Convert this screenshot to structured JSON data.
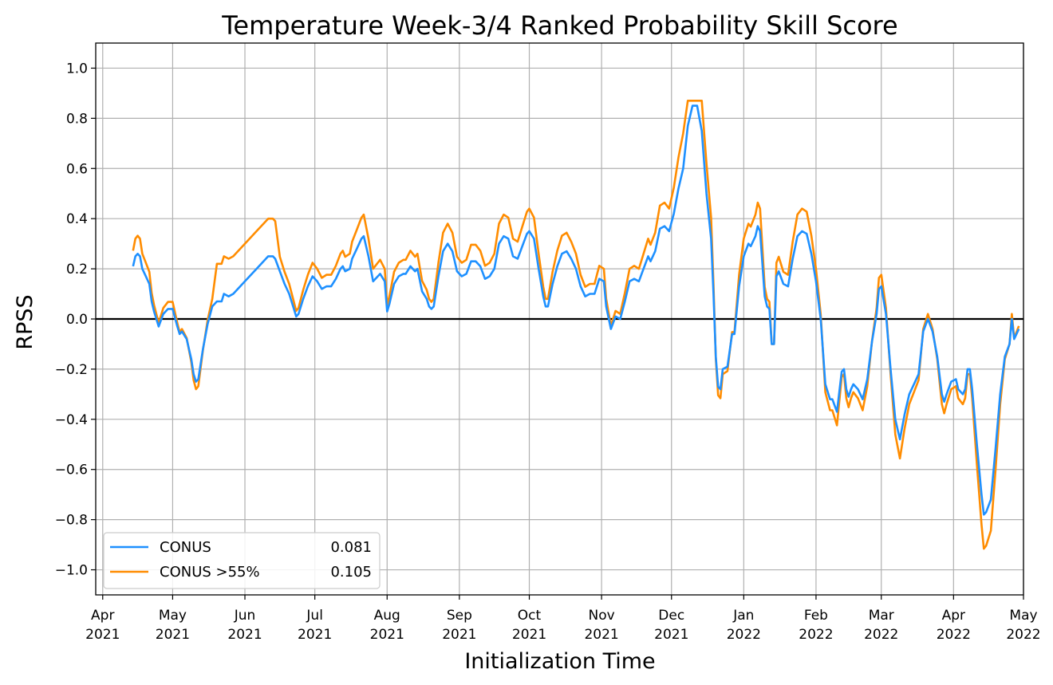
{
  "chart_data": {
    "type": "line",
    "title": "Temperature Week-3/4 Ranked Probability Skill Score",
    "xlabel": "Initialization Time",
    "ylabel": "RPSS",
    "ylim": [
      -1.1,
      1.1
    ],
    "xlim": [
      "2021-03-29",
      "2022-05-01"
    ],
    "grid": true,
    "legend_position": "lower-left",
    "zero_line": true,
    "y_ticks": [
      {
        "v": 1.0,
        "label": "1.0"
      },
      {
        "v": 0.8,
        "label": "0.8"
      },
      {
        "v": 0.6,
        "label": "0.6"
      },
      {
        "v": 0.4,
        "label": "0.4"
      },
      {
        "v": 0.2,
        "label": "0.2"
      },
      {
        "v": 0.0,
        "label": "0.0"
      },
      {
        "v": -0.2,
        "label": "−0.2"
      },
      {
        "v": -0.4,
        "label": "−0.4"
      },
      {
        "v": -0.6,
        "label": "−0.6"
      },
      {
        "v": -0.8,
        "label": "−0.8"
      },
      {
        "v": -1.0,
        "label": "−1.0"
      }
    ],
    "x_ticks": [
      {
        "date": "2021-04-01",
        "month": "Apr",
        "year": "2021"
      },
      {
        "date": "2021-05-01",
        "month": "May",
        "year": "2021"
      },
      {
        "date": "2021-06-01",
        "month": "Jun",
        "year": "2021"
      },
      {
        "date": "2021-07-01",
        "month": "Jul",
        "year": "2021"
      },
      {
        "date": "2021-08-01",
        "month": "Aug",
        "year": "2021"
      },
      {
        "date": "2021-09-01",
        "month": "Sep",
        "year": "2021"
      },
      {
        "date": "2021-10-01",
        "month": "Oct",
        "year": "2021"
      },
      {
        "date": "2021-11-01",
        "month": "Nov",
        "year": "2021"
      },
      {
        "date": "2021-12-01",
        "month": "Dec",
        "year": "2021"
      },
      {
        "date": "2022-01-01",
        "month": "Jan",
        "year": "2022"
      },
      {
        "date": "2022-02-01",
        "month": "Feb",
        "year": "2022"
      },
      {
        "date": "2022-03-01",
        "month": "Mar",
        "year": "2022"
      },
      {
        "date": "2022-04-01",
        "month": "Apr",
        "year": "2022"
      },
      {
        "date": "2022-05-01",
        "month": "May",
        "year": "2022"
      }
    ],
    "series": [
      {
        "name": "CONUS",
        "score": "0.081",
        "color": "#1e90ff",
        "points": [
          [
            "2021-04-14",
            0.21
          ],
          [
            "2021-04-15",
            0.25
          ],
          [
            "2021-04-16",
            0.26
          ],
          [
            "2021-04-17",
            0.25
          ],
          [
            "2021-04-18",
            0.2
          ],
          [
            "2021-04-19",
            0.18
          ],
          [
            "2021-04-20",
            0.16
          ],
          [
            "2021-04-21",
            0.14
          ],
          [
            "2021-04-22",
            0.07
          ],
          [
            "2021-04-23",
            0.03
          ],
          [
            "2021-04-25",
            -0.03
          ],
          [
            "2021-04-27",
            0.02
          ],
          [
            "2021-04-29",
            0.04
          ],
          [
            "2021-05-01",
            0.04
          ],
          [
            "2021-05-03",
            -0.03
          ],
          [
            "2021-05-04",
            -0.06
          ],
          [
            "2021-05-05",
            -0.05
          ],
          [
            "2021-05-07",
            -0.08
          ],
          [
            "2021-05-09",
            -0.16
          ],
          [
            "2021-05-10",
            -0.22
          ],
          [
            "2021-05-11",
            -0.25
          ],
          [
            "2021-05-12",
            -0.24
          ],
          [
            "2021-05-14",
            -0.12
          ],
          [
            "2021-05-16",
            -0.02
          ],
          [
            "2021-05-18",
            0.05
          ],
          [
            "2021-05-20",
            0.07
          ],
          [
            "2021-05-22",
            0.07
          ],
          [
            "2021-05-23",
            0.1
          ],
          [
            "2021-05-25",
            0.09
          ],
          [
            "2021-05-27",
            0.1
          ],
          [
            "2021-06-01",
            0.15
          ],
          [
            "2021-06-06",
            0.2
          ],
          [
            "2021-06-11",
            0.25
          ],
          [
            "2021-06-13",
            0.25
          ],
          [
            "2021-06-14",
            0.24
          ],
          [
            "2021-06-16",
            0.19
          ],
          [
            "2021-06-18",
            0.14
          ],
          [
            "2021-06-20",
            0.1
          ],
          [
            "2021-06-22",
            0.04
          ],
          [
            "2021-06-23",
            0.01
          ],
          [
            "2021-06-24",
            0.02
          ],
          [
            "2021-06-26",
            0.08
          ],
          [
            "2021-06-28",
            0.13
          ],
          [
            "2021-06-30",
            0.17
          ],
          [
            "2021-07-02",
            0.15
          ],
          [
            "2021-07-04",
            0.12
          ],
          [
            "2021-07-06",
            0.13
          ],
          [
            "2021-07-08",
            0.13
          ],
          [
            "2021-07-10",
            0.16
          ],
          [
            "2021-07-12",
            0.2
          ],
          [
            "2021-07-13",
            0.21
          ],
          [
            "2021-07-14",
            0.19
          ],
          [
            "2021-07-16",
            0.2
          ],
          [
            "2021-07-17",
            0.24
          ],
          [
            "2021-07-19",
            0.28
          ],
          [
            "2021-07-21",
            0.32
          ],
          [
            "2021-07-22",
            0.33
          ],
          [
            "2021-07-24",
            0.25
          ],
          [
            "2021-07-26",
            0.15
          ],
          [
            "2021-07-28",
            0.17
          ],
          [
            "2021-07-29",
            0.18
          ],
          [
            "2021-07-31",
            0.15
          ],
          [
            "2021-08-01",
            0.03
          ],
          [
            "2021-08-02",
            0.06
          ],
          [
            "2021-08-04",
            0.14
          ],
          [
            "2021-08-06",
            0.17
          ],
          [
            "2021-08-08",
            0.18
          ],
          [
            "2021-08-09",
            0.18
          ],
          [
            "2021-08-11",
            0.21
          ],
          [
            "2021-08-13",
            0.19
          ],
          [
            "2021-08-14",
            0.2
          ],
          [
            "2021-08-16",
            0.11
          ],
          [
            "2021-08-18",
            0.08
          ],
          [
            "2021-08-19",
            0.05
          ],
          [
            "2021-08-20",
            0.04
          ],
          [
            "2021-08-21",
            0.05
          ],
          [
            "2021-08-23",
            0.17
          ],
          [
            "2021-08-25",
            0.27
          ],
          [
            "2021-08-27",
            0.3
          ],
          [
            "2021-08-29",
            0.27
          ],
          [
            "2021-08-31",
            0.19
          ],
          [
            "2021-09-02",
            0.17
          ],
          [
            "2021-09-04",
            0.18
          ],
          [
            "2021-09-06",
            0.23
          ],
          [
            "2021-09-08",
            0.23
          ],
          [
            "2021-09-10",
            0.21
          ],
          [
            "2021-09-12",
            0.16
          ],
          [
            "2021-09-14",
            0.17
          ],
          [
            "2021-09-16",
            0.2
          ],
          [
            "2021-09-18",
            0.3
          ],
          [
            "2021-09-20",
            0.33
          ],
          [
            "2021-09-22",
            0.32
          ],
          [
            "2021-09-24",
            0.25
          ],
          [
            "2021-09-26",
            0.24
          ],
          [
            "2021-09-28",
            0.29
          ],
          [
            "2021-09-30",
            0.34
          ],
          [
            "2021-10-01",
            0.35
          ],
          [
            "2021-10-03",
            0.32
          ],
          [
            "2021-10-05",
            0.2
          ],
          [
            "2021-10-07",
            0.09
          ],
          [
            "2021-10-08",
            0.05
          ],
          [
            "2021-10-09",
            0.05
          ],
          [
            "2021-10-11",
            0.14
          ],
          [
            "2021-10-13",
            0.21
          ],
          [
            "2021-10-15",
            0.26
          ],
          [
            "2021-10-17",
            0.27
          ],
          [
            "2021-10-19",
            0.24
          ],
          [
            "2021-10-21",
            0.2
          ],
          [
            "2021-10-23",
            0.13
          ],
          [
            "2021-10-25",
            0.09
          ],
          [
            "2021-10-27",
            0.1
          ],
          [
            "2021-10-29",
            0.1
          ],
          [
            "2021-10-31",
            0.16
          ],
          [
            "2021-11-02",
            0.15
          ],
          [
            "2021-11-03",
            0.05
          ],
          [
            "2021-11-05",
            -0.04
          ],
          [
            "2021-11-07",
            0.01
          ],
          [
            "2021-11-09",
            0.0
          ],
          [
            "2021-11-11",
            0.07
          ],
          [
            "2021-11-13",
            0.15
          ],
          [
            "2021-11-15",
            0.16
          ],
          [
            "2021-11-17",
            0.15
          ],
          [
            "2021-11-19",
            0.2
          ],
          [
            "2021-11-21",
            0.25
          ],
          [
            "2021-11-22",
            0.23
          ],
          [
            "2021-11-24",
            0.27
          ],
          [
            "2021-11-26",
            0.36
          ],
          [
            "2021-11-28",
            0.37
          ],
          [
            "2021-11-30",
            0.35
          ],
          [
            "2021-12-02",
            0.42
          ],
          [
            "2021-12-04",
            0.52
          ],
          [
            "2021-12-06",
            0.6
          ],
          [
            "2021-12-08",
            0.77
          ],
          [
            "2021-12-10",
            0.85
          ],
          [
            "2021-12-12",
            0.85
          ],
          [
            "2021-12-14",
            0.75
          ],
          [
            "2021-12-16",
            0.5
          ],
          [
            "2021-12-18",
            0.32
          ],
          [
            "2021-12-19",
            0.1
          ],
          [
            "2021-12-20",
            -0.15
          ],
          [
            "2021-12-21",
            -0.27
          ],
          [
            "2021-12-22",
            -0.28
          ],
          [
            "2021-12-23",
            -0.2
          ],
          [
            "2021-12-25",
            -0.19
          ],
          [
            "2021-12-27",
            -0.06
          ],
          [
            "2021-12-28",
            -0.06
          ],
          [
            "2021-12-30",
            0.13
          ],
          [
            "2022-01-01",
            0.25
          ],
          [
            "2022-01-03",
            0.3
          ],
          [
            "2022-01-04",
            0.29
          ],
          [
            "2022-01-06",
            0.33
          ],
          [
            "2022-01-07",
            0.37
          ],
          [
            "2022-01-08",
            0.35
          ],
          [
            "2022-01-10",
            0.09
          ],
          [
            "2022-01-11",
            0.05
          ],
          [
            "2022-01-12",
            0.04
          ],
          [
            "2022-01-13",
            -0.1
          ],
          [
            "2022-01-14",
            -0.1
          ],
          [
            "2022-01-15",
            0.17
          ],
          [
            "2022-01-16",
            0.19
          ],
          [
            "2022-01-18",
            0.14
          ],
          [
            "2022-01-20",
            0.13
          ],
          [
            "2022-01-22",
            0.24
          ],
          [
            "2022-01-24",
            0.33
          ],
          [
            "2022-01-26",
            0.35
          ],
          [
            "2022-01-28",
            0.34
          ],
          [
            "2022-01-30",
            0.26
          ],
          [
            "2022-02-01",
            0.15
          ],
          [
            "2022-02-03",
            0.0
          ],
          [
            "2022-02-05",
            -0.26
          ],
          [
            "2022-02-07",
            -0.32
          ],
          [
            "2022-02-08",
            -0.32
          ],
          [
            "2022-02-10",
            -0.37
          ],
          [
            "2022-02-12",
            -0.21
          ],
          [
            "2022-02-13",
            -0.2
          ],
          [
            "2022-02-14",
            -0.28
          ],
          [
            "2022-02-15",
            -0.31
          ],
          [
            "2022-02-16",
            -0.28
          ],
          [
            "2022-02-17",
            -0.26
          ],
          [
            "2022-02-19",
            -0.28
          ],
          [
            "2022-02-21",
            -0.32
          ],
          [
            "2022-02-23",
            -0.24
          ],
          [
            "2022-02-25",
            -0.09
          ],
          [
            "2022-02-27",
            0.02
          ],
          [
            "2022-02-28",
            0.12
          ],
          [
            "2022-03-01",
            0.13
          ],
          [
            "2022-03-03",
            0.02
          ],
          [
            "2022-03-05",
            -0.2
          ],
          [
            "2022-03-07",
            -0.4
          ],
          [
            "2022-03-09",
            -0.48
          ],
          [
            "2022-03-11",
            -0.38
          ],
          [
            "2022-03-13",
            -0.3
          ],
          [
            "2022-03-15",
            -0.26
          ],
          [
            "2022-03-17",
            -0.22
          ],
          [
            "2022-03-19",
            -0.05
          ],
          [
            "2022-03-21",
            0.0
          ],
          [
            "2022-03-23",
            -0.05
          ],
          [
            "2022-03-25",
            -0.15
          ],
          [
            "2022-03-27",
            -0.3
          ],
          [
            "2022-03-28",
            -0.33
          ],
          [
            "2022-03-29",
            -0.3
          ],
          [
            "2022-03-31",
            -0.25
          ],
          [
            "2022-04-02",
            -0.24
          ],
          [
            "2022-04-03",
            -0.28
          ],
          [
            "2022-04-05",
            -0.3
          ],
          [
            "2022-04-06",
            -0.28
          ],
          [
            "2022-04-07",
            -0.2
          ],
          [
            "2022-04-08",
            -0.2
          ],
          [
            "2022-04-09",
            -0.28
          ],
          [
            "2022-04-11",
            -0.5
          ],
          [
            "2022-04-13",
            -0.7
          ],
          [
            "2022-04-14",
            -0.78
          ],
          [
            "2022-04-15",
            -0.77
          ],
          [
            "2022-04-17",
            -0.72
          ],
          [
            "2022-04-19",
            -0.52
          ],
          [
            "2022-04-21",
            -0.3
          ],
          [
            "2022-04-23",
            -0.15
          ],
          [
            "2022-04-25",
            -0.1
          ],
          [
            "2022-04-26",
            0.0
          ],
          [
            "2022-04-27",
            -0.08
          ],
          [
            "2022-04-29",
            -0.04
          ]
        ]
      },
      {
        "name": "CONUS >55%",
        "score": "0.105",
        "color": "#ff8c00",
        "points": []
      }
    ]
  }
}
